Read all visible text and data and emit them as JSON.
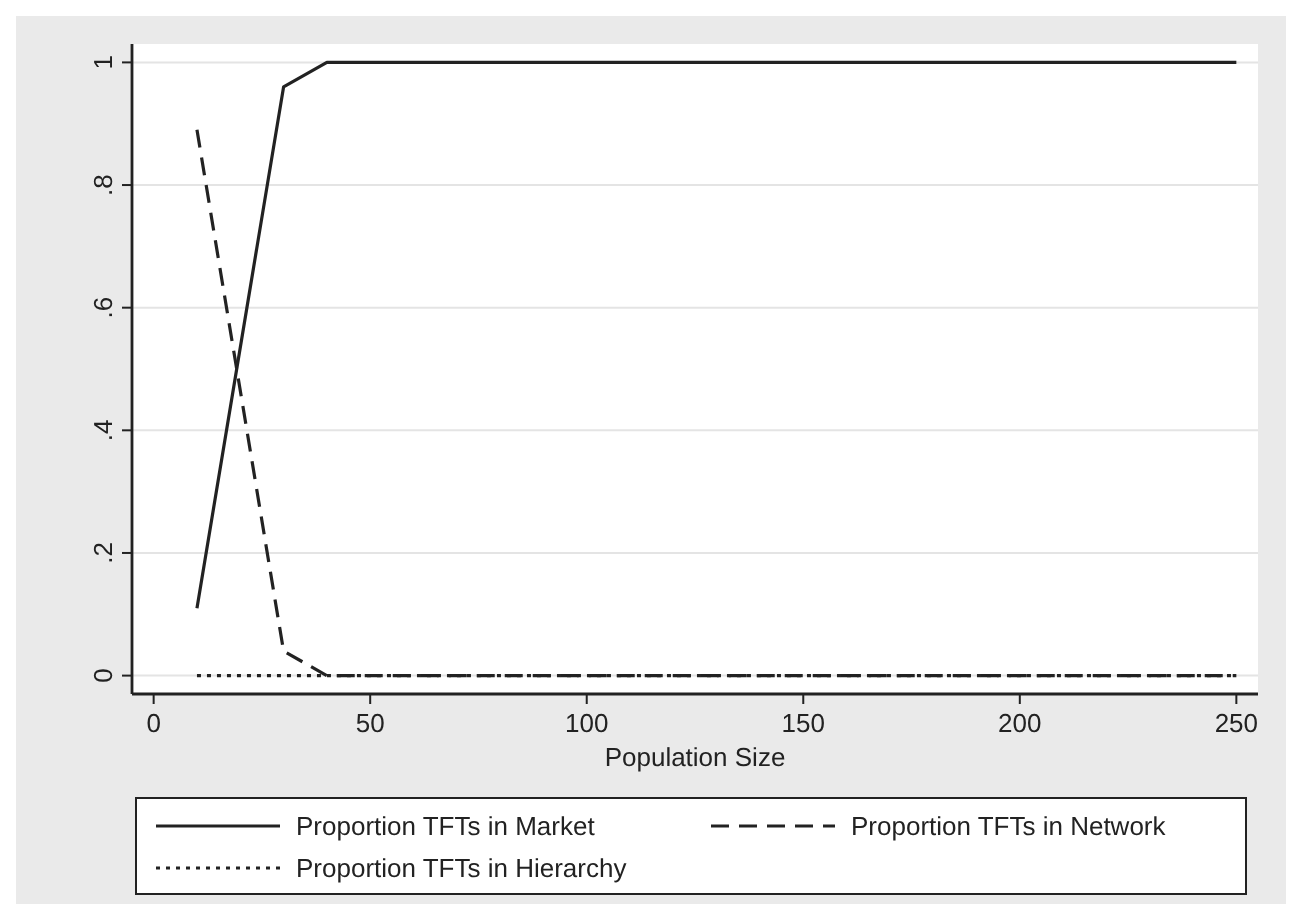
{
  "chart_data": {
    "type": "line",
    "xlabel": "Population Size",
    "x": [
      10,
      30,
      40,
      250
    ],
    "xlim": [
      -5,
      255
    ],
    "xticks": [
      0,
      50,
      100,
      150,
      200,
      250
    ],
    "ylim": [
      -0.03,
      1.03
    ],
    "yticks": [
      {
        "value": 0,
        "label": "0"
      },
      {
        "value": 0.2,
        "label": ".2"
      },
      {
        "value": 0.4,
        "label": ".4"
      },
      {
        "value": 0.6,
        "label": ".6"
      },
      {
        "value": 0.8,
        "label": ".8"
      },
      {
        "value": 1,
        "label": "1"
      }
    ],
    "grid": "y",
    "legend": "bottom",
    "series": [
      {
        "name": "Proportion TFTs in Market",
        "color": "#222222",
        "line_style": "solid",
        "values": [
          0.11,
          0.96,
          1,
          1
        ]
      },
      {
        "name": "Proportion TFTs in Network",
        "color": "#222222",
        "line_style": "dashed",
        "values": [
          0.89,
          0.04,
          0,
          0
        ]
      },
      {
        "name": "Proportion TFTs in Hierarchy",
        "color": "#222222",
        "line_style": "dotted",
        "values": [
          0,
          0,
          0,
          0
        ]
      }
    ]
  }
}
